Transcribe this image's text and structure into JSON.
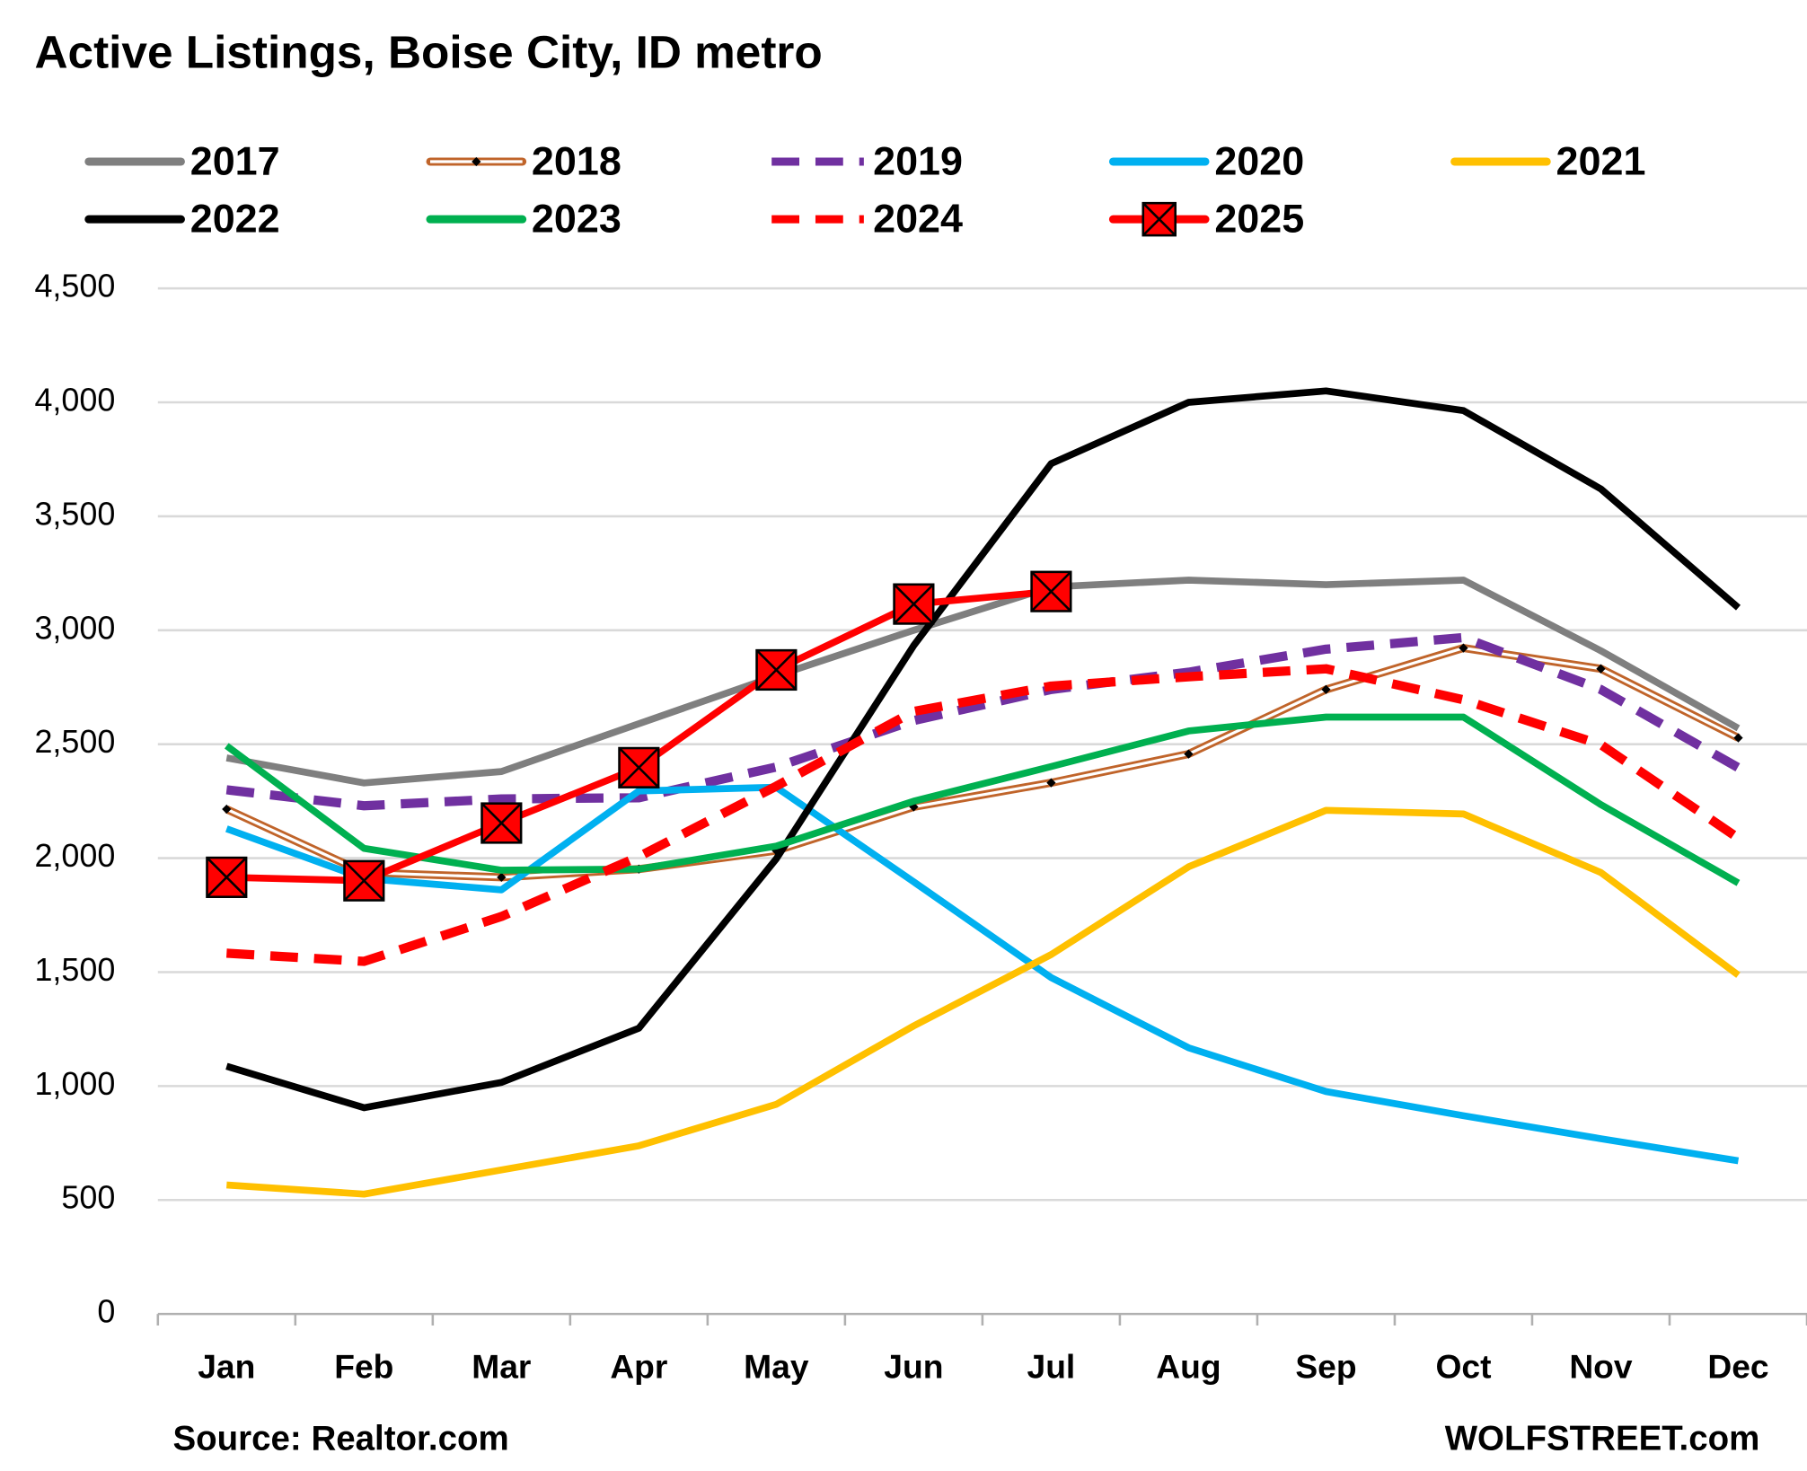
{
  "chart_data": {
    "type": "line",
    "title": "Active Listings, Boise City, ID metro",
    "source": "Source: Realtor.com",
    "credit": "WOLFSTREET.com",
    "categories": [
      "Jan",
      "Feb",
      "Mar",
      "Apr",
      "May",
      "Jun",
      "Jul",
      "Aug",
      "Sep",
      "Oct",
      "Nov",
      "Dec"
    ],
    "ylim": [
      0,
      4500
    ],
    "yticks": [
      0,
      500,
      {
        "value": 1000,
        "label": "1,000"
      },
      {
        "value": 1500,
        "label": "1,500"
      },
      {
        "value": 2000,
        "label": "2,000"
      },
      {
        "value": 2500,
        "label": "2,500"
      },
      {
        "value": 3000,
        "label": "3,000"
      },
      {
        "value": 3500,
        "label": "3,500"
      },
      {
        "value": 4000,
        "label": "4,000"
      },
      {
        "value": 4500,
        "label": "4,500"
      }
    ],
    "grid": true,
    "series": [
      {
        "name": "2017",
        "color": "#7f7f7f",
        "style": "solid",
        "values": [
          2440,
          2330,
          2380,
          2590,
          2800,
          3000,
          3190,
          3220,
          3200,
          3220,
          2910,
          2570
        ]
      },
      {
        "name": "2018",
        "color": "#c0642a",
        "style": "double",
        "marker": "diamond",
        "values": [
          2215,
          1937,
          1916,
          1952,
          2033,
          2225,
          2331,
          2457,
          2740,
          2922,
          2831,
          2528
        ]
      },
      {
        "name": "2019",
        "color": "#7030a0",
        "style": "dashed",
        "values": [
          2300,
          2230,
          2260,
          2265,
          2400,
          2604,
          2740,
          2816,
          2917,
          2968,
          2740,
          2397
        ]
      },
      {
        "name": "2020",
        "color": "#00b0f0",
        "style": "solid",
        "values": [
          2129,
          1911,
          1861,
          2295,
          2311,
          1896,
          1476,
          1168,
          976,
          870,
          769,
          672
        ]
      },
      {
        "name": "2021",
        "color": "#ffc000",
        "style": "solid",
        "values": [
          566,
          526,
          632,
          738,
          920,
          1264,
          1577,
          1962,
          2210,
          2194,
          1937,
          1487
        ]
      },
      {
        "name": "2022",
        "color": "#000000",
        "style": "solid",
        "values": [
          1087,
          905,
          1016,
          1254,
          1997,
          2933,
          3731,
          4000,
          4050,
          3964,
          3620,
          3099
        ]
      },
      {
        "name": "2023",
        "color": "#00b050",
        "style": "solid",
        "values": [
          2493,
          2043,
          1947,
          1952,
          2053,
          2250,
          2402,
          2558,
          2619,
          2619,
          2235,
          1891
        ]
      },
      {
        "name": "2024",
        "color": "#ff0000",
        "style": "dashed",
        "values": [
          1583,
          1547,
          1744,
          2007,
          2316,
          2644,
          2755,
          2796,
          2831,
          2695,
          2498,
          2088
        ]
      },
      {
        "name": "2025",
        "color": "#ff0000",
        "style": "solid",
        "marker": "square-x",
        "values": [
          1916,
          1901,
          2154,
          2397,
          2826,
          3115,
          3170,
          null,
          null,
          null,
          null,
          null
        ]
      }
    ]
  }
}
